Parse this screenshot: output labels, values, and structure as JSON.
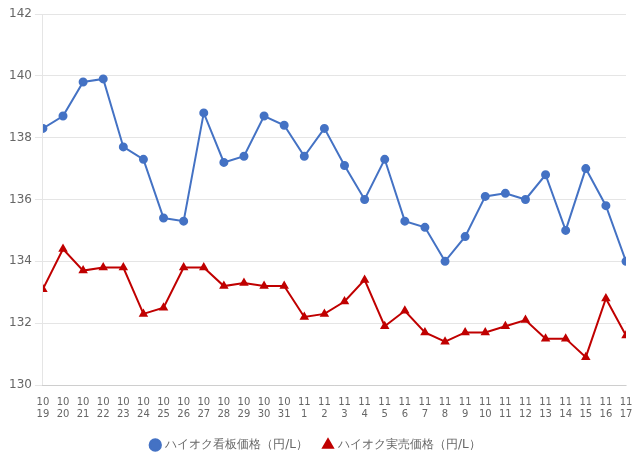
{
  "chart_data": {
    "type": "line",
    "categories": [
      [
        "10",
        "19"
      ],
      [
        "10",
        "20"
      ],
      [
        "10",
        "21"
      ],
      [
        "10",
        "22"
      ],
      [
        "10",
        "23"
      ],
      [
        "10",
        "24"
      ],
      [
        "10",
        "25"
      ],
      [
        "10",
        "26"
      ],
      [
        "10",
        "27"
      ],
      [
        "10",
        "28"
      ],
      [
        "10",
        "29"
      ],
      [
        "10",
        "30"
      ],
      [
        "10",
        "31"
      ],
      [
        "11",
        "1"
      ],
      [
        "11",
        "2"
      ],
      [
        "11",
        "3"
      ],
      [
        "11",
        "4"
      ],
      [
        "11",
        "5"
      ],
      [
        "11",
        "6"
      ],
      [
        "11",
        "7"
      ],
      [
        "11",
        "8"
      ],
      [
        "11",
        "9"
      ],
      [
        "11",
        "10"
      ],
      [
        "11",
        "11"
      ],
      [
        "11",
        "12"
      ],
      [
        "11",
        "13"
      ],
      [
        "11",
        "14"
      ],
      [
        "11",
        "15"
      ],
      [
        "11",
        "16"
      ],
      [
        "11",
        "17"
      ]
    ],
    "series": [
      {
        "name": "ハイオク看板価格（円/L）",
        "color": "#4472C4",
        "marker": "circle",
        "values": [
          138.3,
          138.7,
          139.8,
          139.9,
          137.7,
          137.3,
          135.4,
          135.3,
          138.8,
          137.2,
          137.4,
          138.7,
          138.4,
          137.4,
          138.3,
          137.1,
          136.0,
          137.3,
          135.3,
          135.1,
          134.0,
          134.8,
          136.1,
          136.2,
          136.0,
          136.8,
          135.0,
          137.0,
          135.8,
          134.0
        ]
      },
      {
        "name": "ハイオク実売価格（円/L）",
        "color": "#C00000",
        "marker": "triangle",
        "values": [
          133.1,
          134.4,
          133.7,
          133.8,
          133.8,
          132.3,
          132.5,
          133.8,
          133.8,
          133.2,
          133.3,
          133.2,
          133.2,
          132.2,
          132.3,
          132.7,
          133.4,
          131.9,
          132.4,
          131.7,
          131.4,
          131.7,
          131.7,
          131.9,
          132.1,
          131.5,
          131.5,
          130.9,
          132.8,
          131.6
        ]
      }
    ],
    "ylim": [
      130,
      142
    ],
    "yticks": [
      130,
      132,
      134,
      136,
      138,
      140,
      142
    ],
    "grid": true,
    "legend": "bottom"
  }
}
